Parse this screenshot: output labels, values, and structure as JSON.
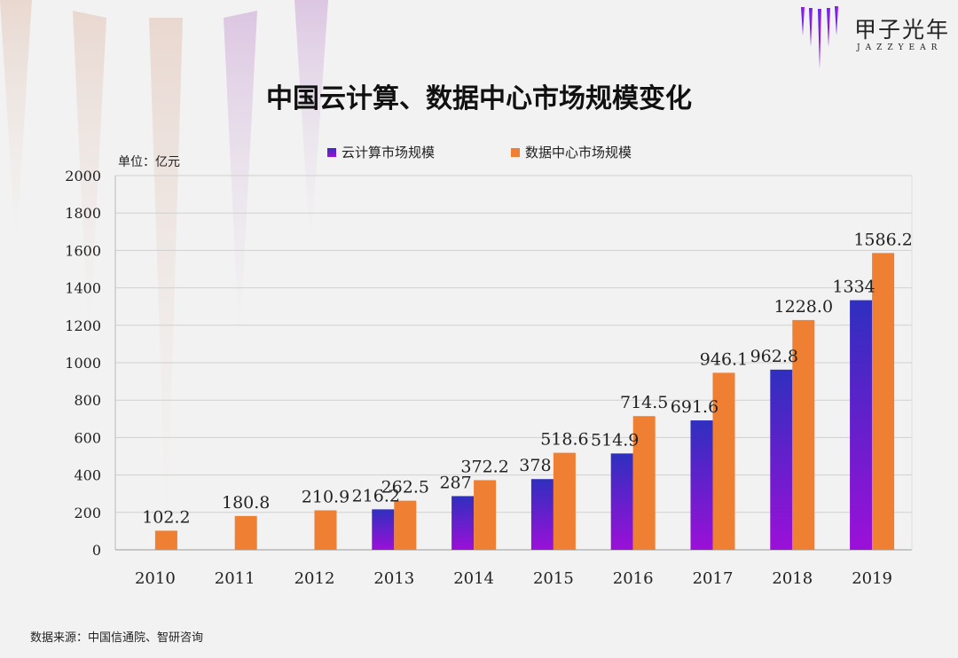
{
  "brand": {
    "name_cn": "甲子光年",
    "name_en": "JAZZYEAR"
  },
  "chart_data": {
    "type": "bar",
    "title": "中国云计算、数据中心市场规模变化",
    "ylabel": "单位：亿元",
    "xlabel": "",
    "ylim": [
      0,
      2000
    ],
    "yticks": [
      0,
      200,
      400,
      600,
      800,
      1000,
      1200,
      1400,
      1600,
      1800,
      2000
    ],
    "grid": true,
    "legend_placement": "top",
    "categories": [
      "2010",
      "2011",
      "2012",
      "2013",
      "2014",
      "2015",
      "2016",
      "2017",
      "2018",
      "2019"
    ],
    "series": [
      {
        "name": "云计算市场规模",
        "color": "#6a1fd0",
        "values": [
          null,
          null,
          null,
          216.2,
          287,
          378,
          514.9,
          691.6,
          962.8,
          1334
        ],
        "labels": [
          "",
          "",
          "",
          "216.2",
          "287",
          "378",
          "514.9",
          "691.6",
          "962.8",
          "1334"
        ]
      },
      {
        "name": "数据中心市场规模",
        "color": "#ef7f33",
        "values": [
          102.2,
          180.8,
          210.9,
          262.5,
          372.2,
          518.6,
          714.5,
          946.1,
          1228.0,
          1586.2
        ],
        "labels": [
          "102.2",
          "180.8",
          "210.9",
          "262.5",
          "372.2",
          "518.6",
          "714.5",
          "946.1",
          "1228.0",
          "1586.2"
        ]
      }
    ]
  },
  "source": "数据来源：中国信通院、智研咨询"
}
